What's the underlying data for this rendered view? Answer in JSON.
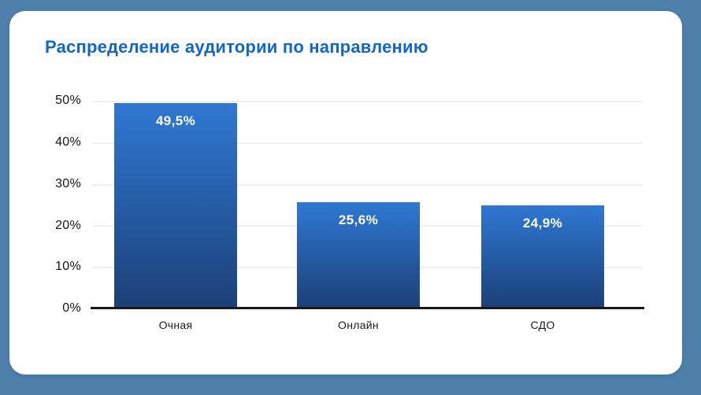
{
  "colors": {
    "background": "#4e80ab",
    "card": "#ffffff",
    "title": "#1166cb",
    "bar_gradient_top": "#2f78d3",
    "bar_gradient_bottom": "#1c4077",
    "axis_line": "#17191d",
    "gridline": "#f0f0f1",
    "value_label": "#ffffff",
    "tick_label": "#131313"
  },
  "chart_data": {
    "type": "bar",
    "title": "Распределение аудитории по направлению",
    "categories": [
      "Очная",
      "Онлайн",
      "СДО"
    ],
    "values": [
      49.5,
      25.6,
      24.9
    ],
    "value_labels": [
      "49,5%",
      "25,6%",
      "24,9%"
    ],
    "xlabel": "",
    "ylabel": "",
    "ylim": [
      0,
      50
    ],
    "y_ticks": [
      "50%",
      "40%",
      "30%",
      "20%",
      "10%",
      "0%"
    ],
    "grid": true,
    "legend": false
  }
}
